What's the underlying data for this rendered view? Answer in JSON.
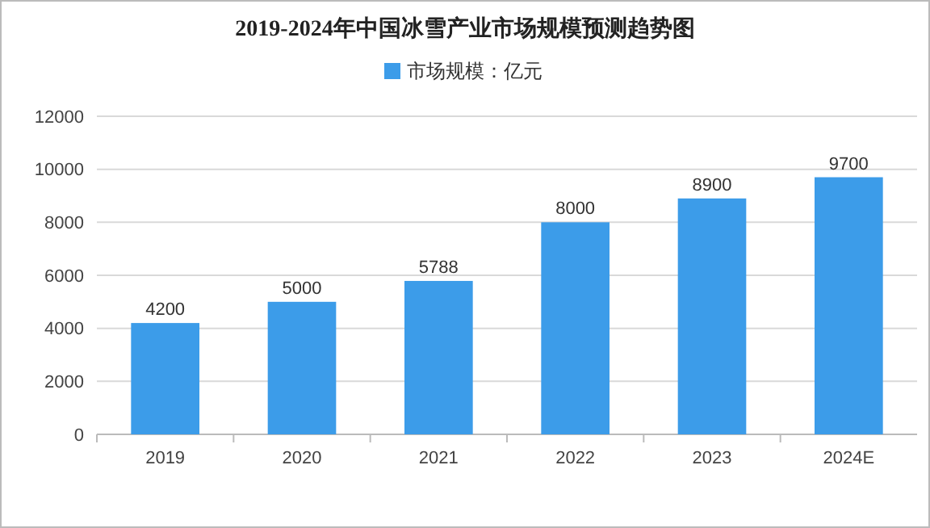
{
  "chart_data": {
    "type": "bar",
    "title": "2019-2024年中国冰雪产业市场规模预测趋势图",
    "categories": [
      "2019",
      "2020",
      "2021",
      "2022",
      "2023",
      "2024E"
    ],
    "series": [
      {
        "name": "市场规模：亿元",
        "color": "#3c9ce9",
        "values": [
          4200,
          5000,
          5788,
          8000,
          8900,
          9700
        ]
      }
    ],
    "ylim": [
      0,
      12000
    ],
    "yticks": [
      0,
      2000,
      4000,
      6000,
      8000,
      10000,
      12000
    ],
    "grid": "y",
    "legend": "top",
    "data_labels": true
  }
}
